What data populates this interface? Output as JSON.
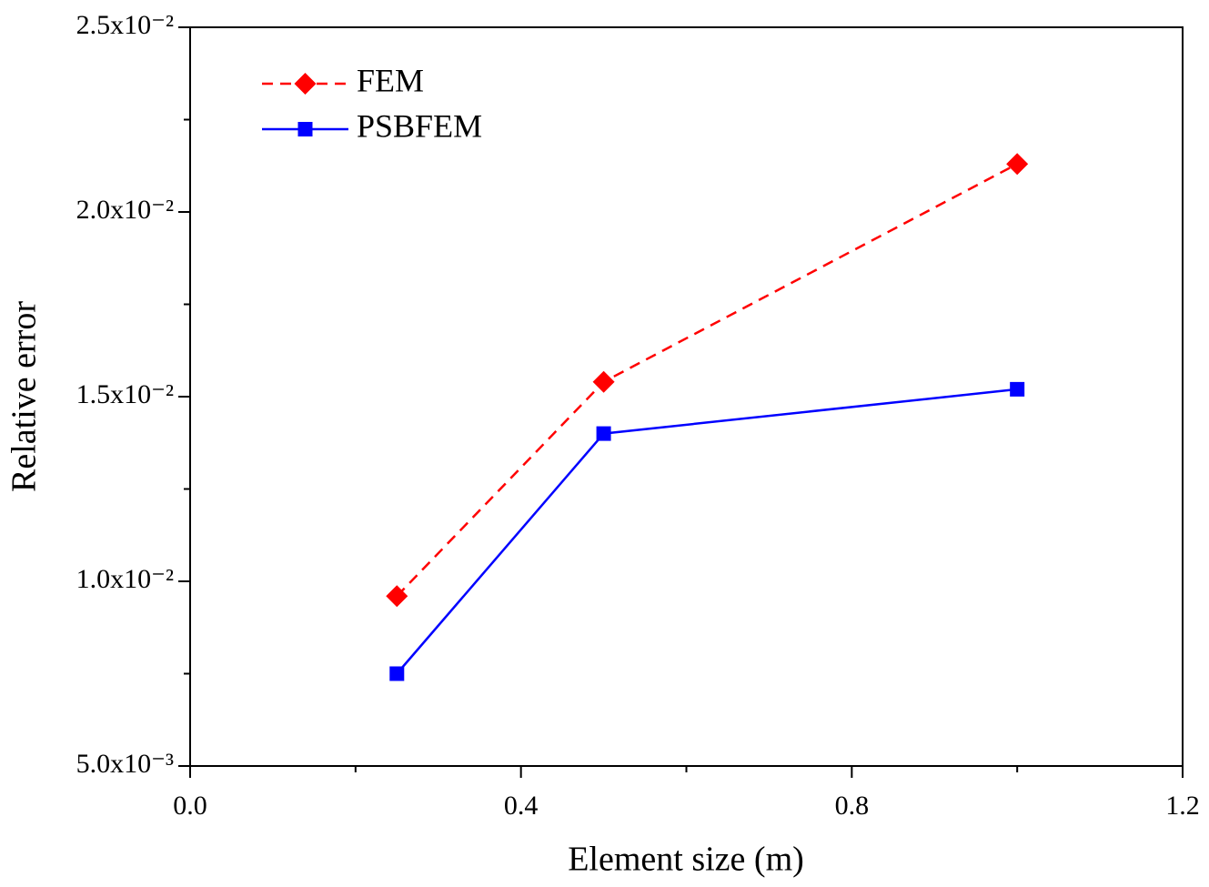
{
  "chart_data": {
    "type": "line",
    "xlabel": "Element size (m)",
    "ylabel": "Relative error",
    "x": [
      0.25,
      0.5,
      1.0
    ],
    "series": [
      {
        "name": "FEM",
        "color": "#ff0000",
        "linestyle": "dashed",
        "marker": "diamond",
        "values": [
          0.0096,
          0.0154,
          0.0213
        ]
      },
      {
        "name": "PSBFEM",
        "color": "#0000ff",
        "linestyle": "solid",
        "marker": "square",
        "values": [
          0.0075,
          0.014,
          0.0152
        ]
      }
    ],
    "xlim": [
      0,
      1.2
    ],
    "xticks": [
      {
        "value": 0,
        "label": "0.0"
      },
      0.4,
      0.8,
      1.2
    ],
    "xminor_ticks": [
      0.2,
      0.6,
      1.0
    ],
    "ylim": [
      0.005,
      0.025
    ],
    "yticks": [
      {
        "value": 0.005,
        "label": "5.0x10⁻³"
      },
      {
        "value": 0.01,
        "label": "1.0x10⁻²"
      },
      {
        "value": 0.015,
        "label": "1.5x10⁻²"
      },
      {
        "value": 0.02,
        "label": "2.0x10⁻²"
      },
      {
        "value": 0.025,
        "label": "2.5x10⁻²"
      }
    ],
    "yminor_ticks": [
      0.0075,
      0.0125,
      0.0175,
      0.0225
    ],
    "legend": "upper left",
    "grid": false
  }
}
